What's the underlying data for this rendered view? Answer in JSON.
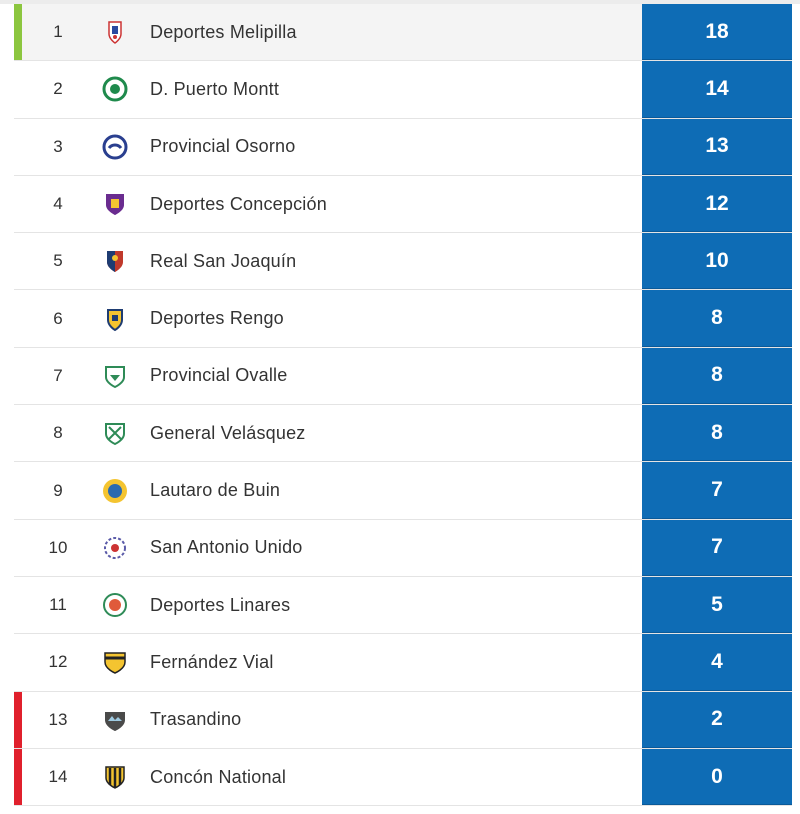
{
  "standings": {
    "rows": [
      {
        "pos": "1",
        "team": "Deportes Melipilla",
        "pts": "18",
        "crest": "melipilla-crest-icon",
        "status": "leader"
      },
      {
        "pos": "2",
        "team": "D. Puerto Montt",
        "pts": "14",
        "crest": "puerto-montt-crest-icon",
        "status": ""
      },
      {
        "pos": "3",
        "team": "Provincial Osorno",
        "pts": "13",
        "crest": "osorno-crest-icon",
        "status": ""
      },
      {
        "pos": "4",
        "team": "Deportes Concepción",
        "pts": "12",
        "crest": "concepcion-crest-icon",
        "status": ""
      },
      {
        "pos": "5",
        "team": "Real San Joaquín",
        "pts": "10",
        "crest": "san-joaquin-crest-icon",
        "status": ""
      },
      {
        "pos": "6",
        "team": "Deportes Rengo",
        "pts": "8",
        "crest": "rengo-crest-icon",
        "status": ""
      },
      {
        "pos": "7",
        "team": "Provincial Ovalle",
        "pts": "8",
        "crest": "ovalle-crest-icon",
        "status": ""
      },
      {
        "pos": "8",
        "team": "General Velásquez",
        "pts": "8",
        "crest": "velasquez-crest-icon",
        "status": ""
      },
      {
        "pos": "9",
        "team": "Lautaro de Buin",
        "pts": "7",
        "crest": "buin-crest-icon",
        "status": ""
      },
      {
        "pos": "10",
        "team": "San Antonio Unido",
        "pts": "7",
        "crest": "san-antonio-crest-icon",
        "status": ""
      },
      {
        "pos": "11",
        "team": "Deportes Linares",
        "pts": "5",
        "crest": "linares-crest-icon",
        "status": ""
      },
      {
        "pos": "12",
        "team": "Fernández Vial",
        "pts": "4",
        "crest": "fernandez-vial-crest-icon",
        "status": ""
      },
      {
        "pos": "13",
        "team": "Trasandino",
        "pts": "2",
        "crest": "trasandino-crest-icon",
        "status": "relegation"
      },
      {
        "pos": "14",
        "team": "Concón National",
        "pts": "0",
        "crest": "concon-crest-icon",
        "status": "relegation"
      }
    ]
  },
  "colors": {
    "points_bg": "#0e6cb5",
    "leader": "#8cc63f",
    "relegation": "#e0202c"
  }
}
